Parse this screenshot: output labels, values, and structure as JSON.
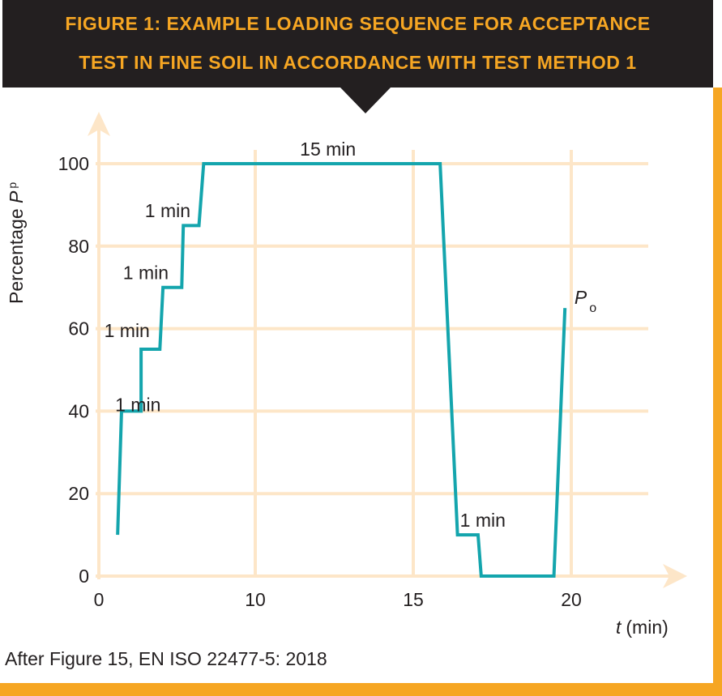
{
  "title_lines": [
    "FIGURE 1: EXAMPLE LOADING SEQUENCE FOR ACCEPTANCE",
    "TEST IN FINE SOIL IN ACCORDANCE WITH TEST METHOD 1"
  ],
  "source": "After Figure 15, EN ISO 22477-5: 2018",
  "colors": {
    "banner": "#231f20",
    "title": "#f6a623",
    "border": "#f6a623",
    "grid": "#fde6c8",
    "line": "#14a5ad"
  },
  "chart_data": {
    "type": "line",
    "title": "FIGURE 1: EXAMPLE LOADING SEQUENCE FOR ACCEPTANCE TEST IN FINE SOIL IN ACCORDANCE WITH TEST METHOD 1",
    "xlabel": {
      "var": "t",
      "unit": "(min)"
    },
    "ylabel": {
      "text": "Percentage ",
      "var": "P",
      "sub": "p"
    },
    "xticks": [
      0,
      10,
      15,
      20
    ],
    "yticks": [
      0,
      20,
      40,
      60,
      80,
      100
    ],
    "xlim": [
      0,
      23
    ],
    "ylim": [
      0,
      100
    ],
    "grid": true,
    "series": [
      {
        "x": [
          1.2,
          1.45,
          2.7,
          2.7,
          3.9,
          4.1,
          5.3,
          5.4,
          6.4,
          6.7,
          15.85,
          16.4,
          17.05,
          17.15,
          19.45,
          19.8
        ],
        "y": [
          10,
          40,
          40,
          55,
          55,
          70,
          70,
          85,
          85,
          100,
          100,
          10,
          10,
          0,
          0,
          65
        ]
      }
    ],
    "annotations": [
      {
        "text": "1 min",
        "x": 2.5,
        "y": 40
      },
      {
        "text": "1 min",
        "x": 1.8,
        "y": 58
      },
      {
        "text": "1 min",
        "x": 3.0,
        "y": 72
      },
      {
        "text": "1 min",
        "x": 4.4,
        "y": 87
      },
      {
        "text": "15 min",
        "x": 12.3,
        "y": 102
      },
      {
        "text": "1 min",
        "x": 17.2,
        "y": 12
      },
      {
        "text": "P",
        "sub": "o",
        "x": 20.1,
        "y": 66
      }
    ]
  }
}
